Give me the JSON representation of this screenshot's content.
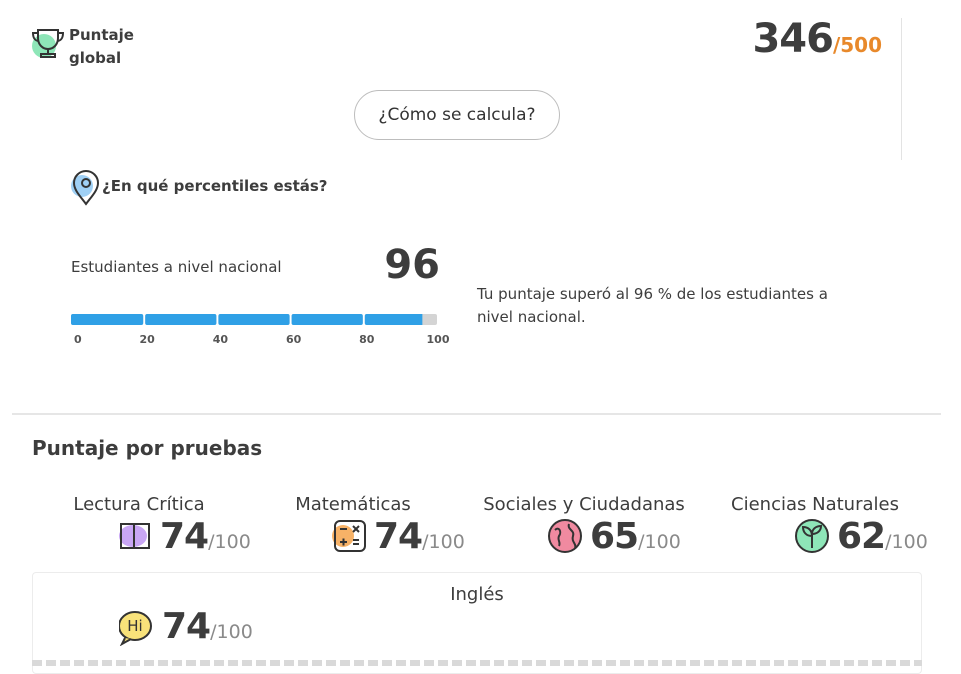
{
  "header": {
    "label": "Puntaje global",
    "score": 346,
    "max": "/500",
    "button": "¿Cómo se calcula?"
  },
  "percentile": {
    "question": "¿En qué percentiles estás?",
    "label": "Estudiantes a nivel nacional",
    "value": 96,
    "ticks": [
      0,
      20,
      40,
      60,
      80,
      100
    ],
    "description": "Tu puntaje superó al 96 % de los estudiantes a nivel nacional."
  },
  "tests": {
    "title": "Puntaje por pruebas",
    "items": [
      {
        "name": "Lectura Crítica",
        "score": 74,
        "max": "/100"
      },
      {
        "name": "Matemáticas",
        "score": 74,
        "max": "/100"
      },
      {
        "name": "Sociales y Ciudadanas",
        "score": 65,
        "max": "/100"
      },
      {
        "name": "Ciencias Naturales",
        "score": 62,
        "max": "/100"
      },
      {
        "name": "Inglés",
        "score": 74,
        "max": "/100"
      }
    ]
  }
}
